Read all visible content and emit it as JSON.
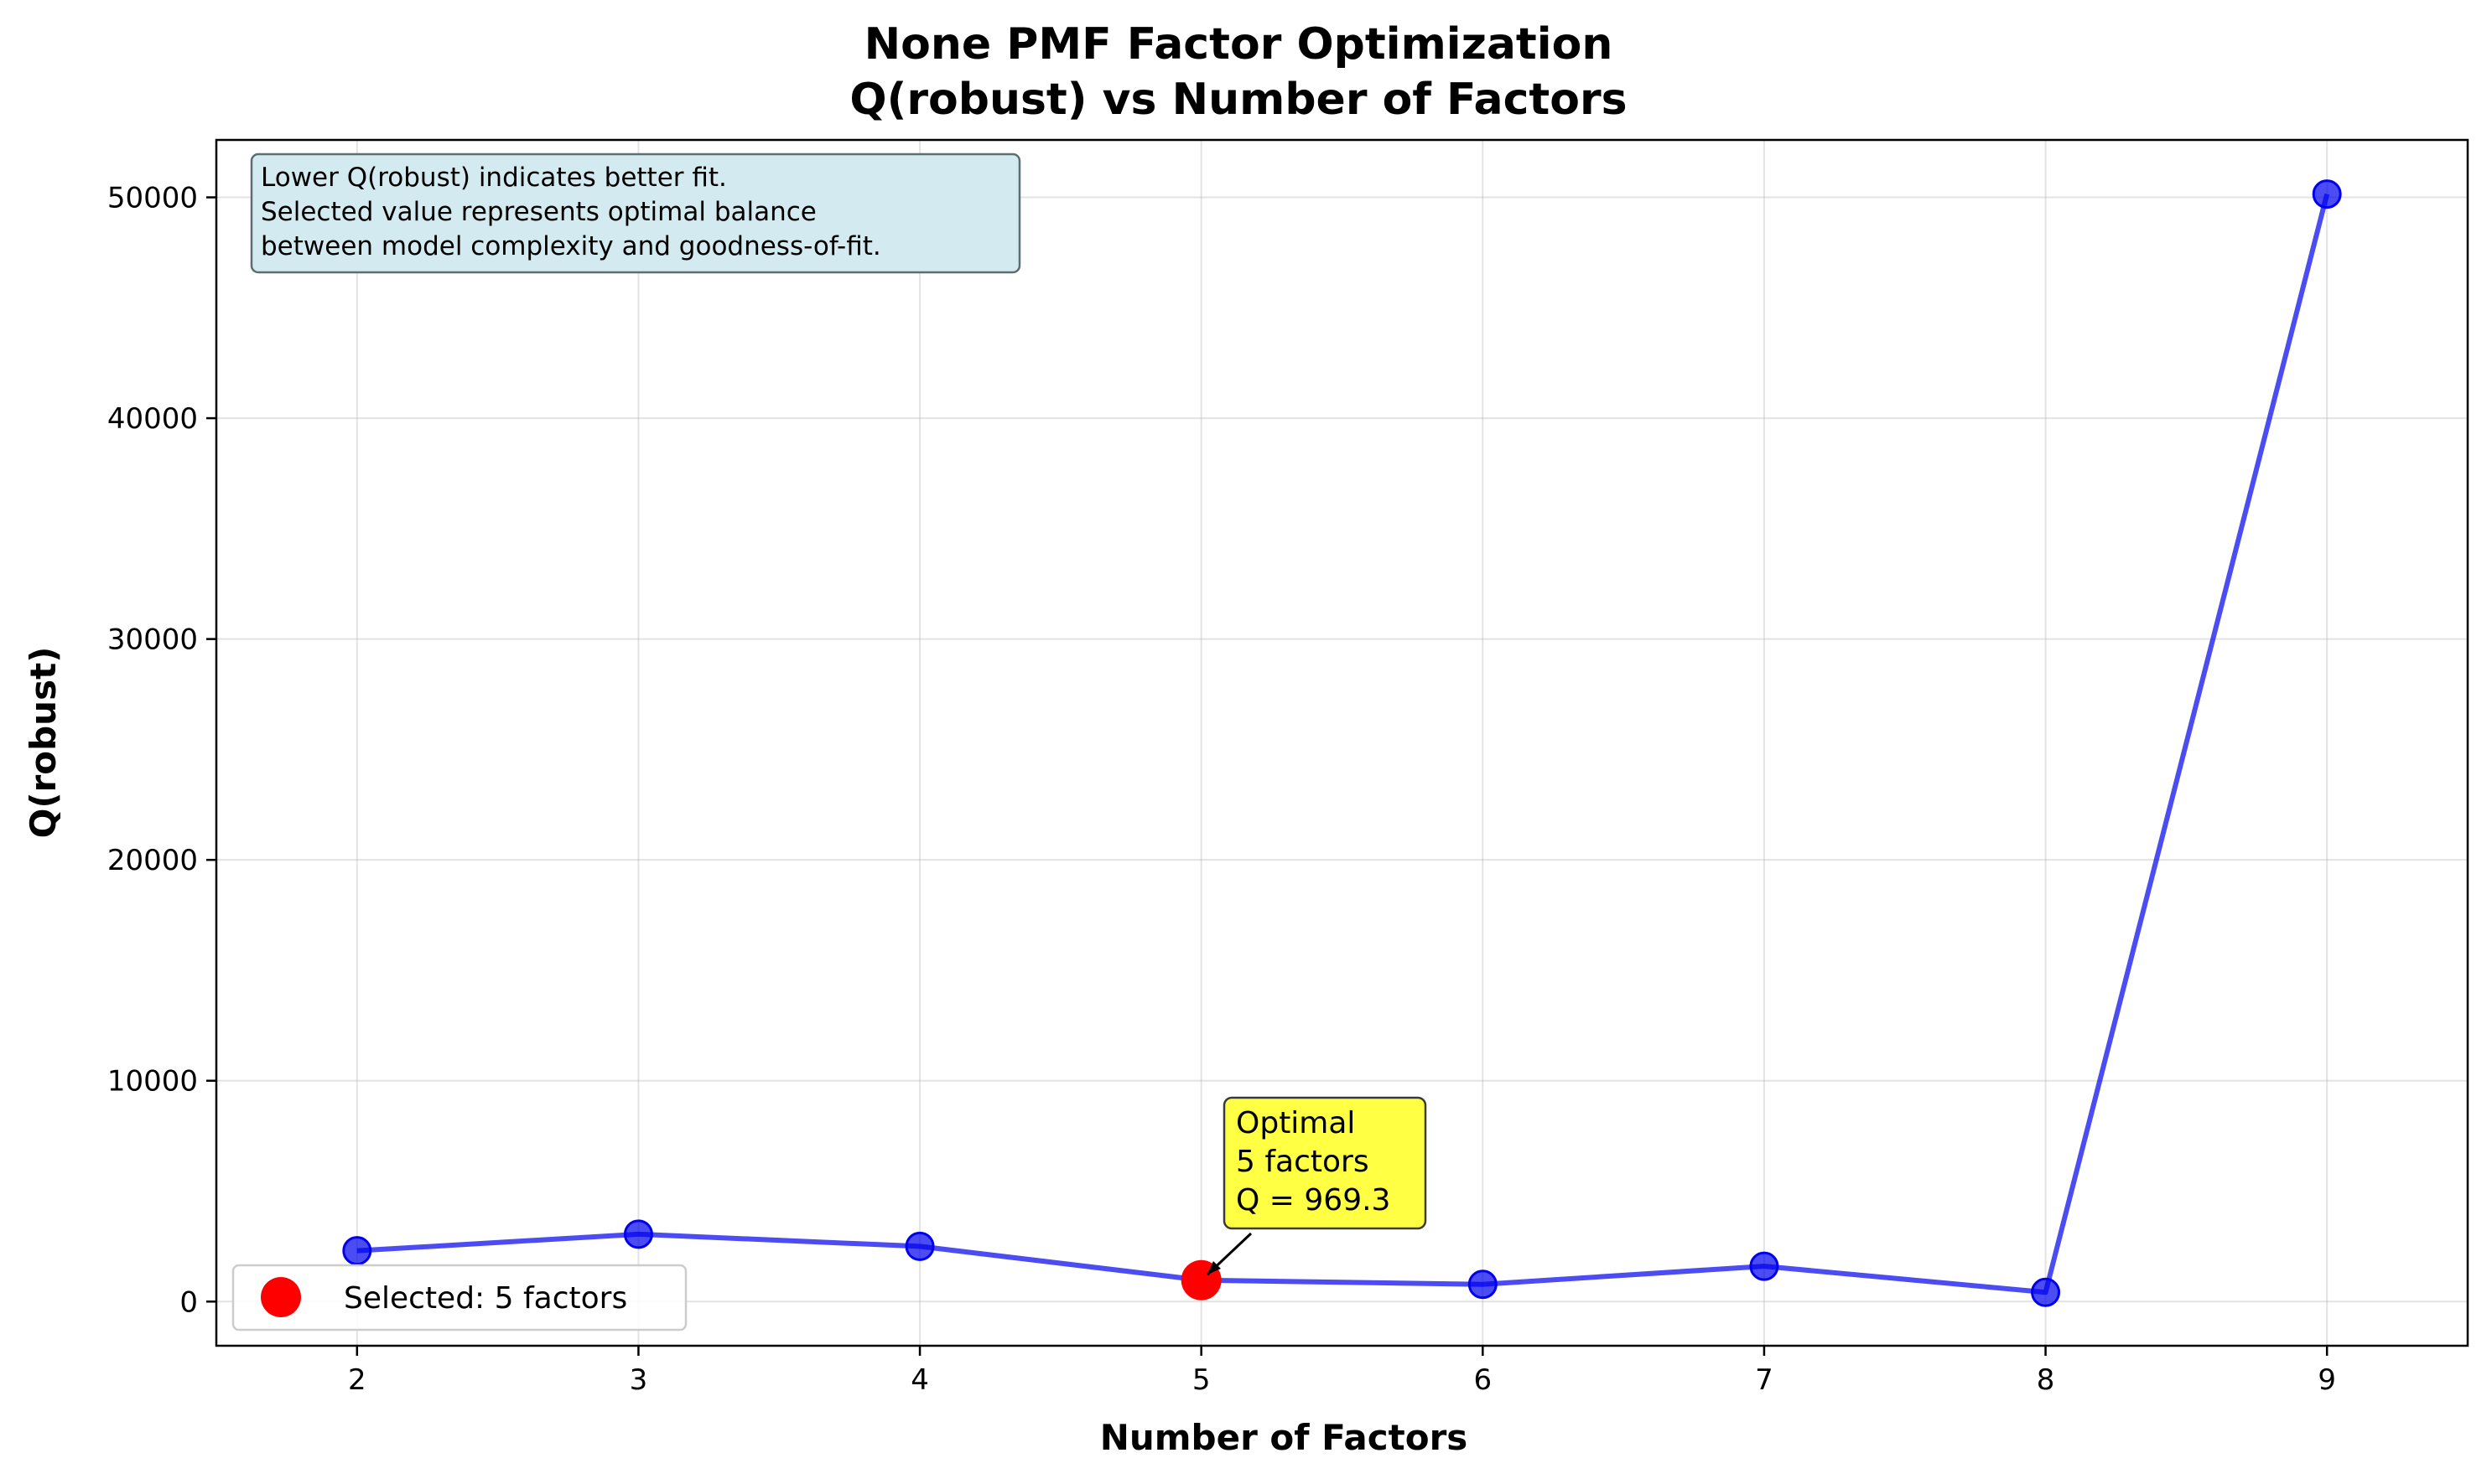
{
  "chart_data": {
    "type": "line",
    "title": [
      "None PMF Factor Optimization",
      "Q(robust) vs Number of Factors"
    ],
    "xlabel": "Number of Factors",
    "ylabel": "Q(robust)",
    "xlim": [
      1.5,
      9.5
    ],
    "ylim": [
      -2000,
      52600
    ],
    "xticks": [
      2,
      3,
      4,
      5,
      6,
      7,
      8,
      9
    ],
    "yticks": [
      0,
      10000,
      20000,
      30000,
      40000,
      50000
    ],
    "grid": true,
    "series": [
      {
        "color": "#0000ee",
        "x": [
          2,
          3,
          4,
          5,
          6,
          7,
          8,
          9
        ],
        "values": [
          2300,
          3050,
          2500,
          969.3,
          780,
          1600,
          420,
          50150
        ]
      }
    ],
    "selected": {
      "x": 5,
      "y": 969.3,
      "color": "#ff0000"
    },
    "legend": {
      "position": "lower-left",
      "entries": [
        "Selected: 5 factors"
      ]
    },
    "annotation": {
      "lines": [
        "Optimal",
        "5 factors",
        "Q = 969.3"
      ],
      "box_color": "#ffff44"
    },
    "note": {
      "position": "top-left",
      "lines": [
        "Lower Q(robust) indicates better fit.",
        "Selected value represents optimal balance",
        "between model complexity and goodness-of-fit."
      ],
      "box_color": "#d3eaf0"
    }
  }
}
